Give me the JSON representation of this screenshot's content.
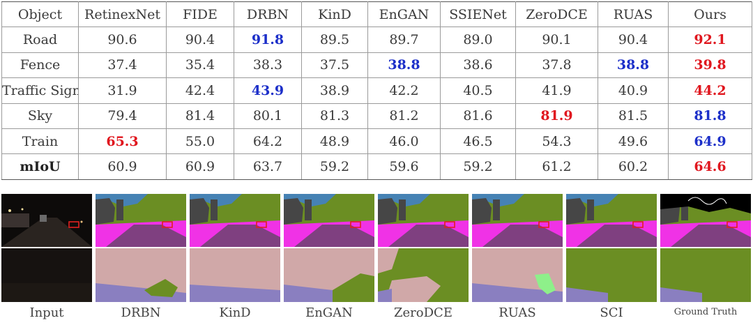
{
  "table": {
    "headers": [
      "Object",
      "RetinexNet",
      "FIDE",
      "DRBN",
      "KinD",
      "EnGAN",
      "SSIENet",
      "ZeroDCE",
      "RUAS",
      "Ours"
    ],
    "rows": [
      {
        "label": "Road",
        "values": [
          "90.6",
          "90.4",
          "91.8",
          "89.5",
          "89.7",
          "89.0",
          "90.1",
          "90.4",
          "92.1"
        ],
        "marks": [
          "",
          "",
          "second",
          "",
          "",
          "",
          "",
          "",
          "best"
        ]
      },
      {
        "label": "Fence",
        "values": [
          "37.4",
          "35.4",
          "38.3",
          "37.5",
          "38.8",
          "38.6",
          "37.8",
          "38.8",
          "39.8"
        ],
        "marks": [
          "",
          "",
          "",
          "",
          "second",
          "",
          "",
          "second",
          "best"
        ]
      },
      {
        "label": "Traffic Sign",
        "values": [
          "31.9",
          "42.4",
          "43.9",
          "38.9",
          "42.2",
          "40.5",
          "41.9",
          "40.9",
          "44.2"
        ],
        "marks": [
          "",
          "",
          "second",
          "",
          "",
          "",
          "",
          "",
          "best"
        ]
      },
      {
        "label": "Sky",
        "values": [
          "79.4",
          "81.4",
          "80.1",
          "81.3",
          "81.2",
          "81.6",
          "81.9",
          "81.5",
          "81.8"
        ],
        "marks": [
          "",
          "",
          "",
          "",
          "",
          "",
          "best",
          "",
          "second"
        ]
      },
      {
        "label": "Train",
        "values": [
          "65.3",
          "55.0",
          "64.2",
          "48.9",
          "46.0",
          "46.5",
          "54.3",
          "49.6",
          "64.9"
        ],
        "marks": [
          "best",
          "",
          "",
          "",
          "",
          "",
          "",
          "",
          "second"
        ]
      },
      {
        "label": "mIoU",
        "values": [
          "60.9",
          "60.9",
          "63.7",
          "59.2",
          "59.6",
          "59.2",
          "61.2",
          "60.2",
          "64.6"
        ],
        "marks": [
          "",
          "",
          "",
          "",
          "",
          "",
          "",
          "",
          "best"
        ],
        "bold_label": true
      }
    ]
  },
  "captions": [
    "Input",
    "DRBN",
    "KinD",
    "EnGAN",
    "ZeroDCE",
    "RUAS",
    "SCI",
    "Ground Truth"
  ],
  "colors": {
    "best": "#e0161e",
    "second": "#1c2fc9",
    "sky": "#4682b4",
    "vegetation": "#6b8e23",
    "building": "#464646",
    "road": "#7f4080",
    "sidewalk": "#f032e6",
    "wall": "#d0a8a8",
    "terrain": "#8a7fc0",
    "highlight": "#e02020"
  }
}
